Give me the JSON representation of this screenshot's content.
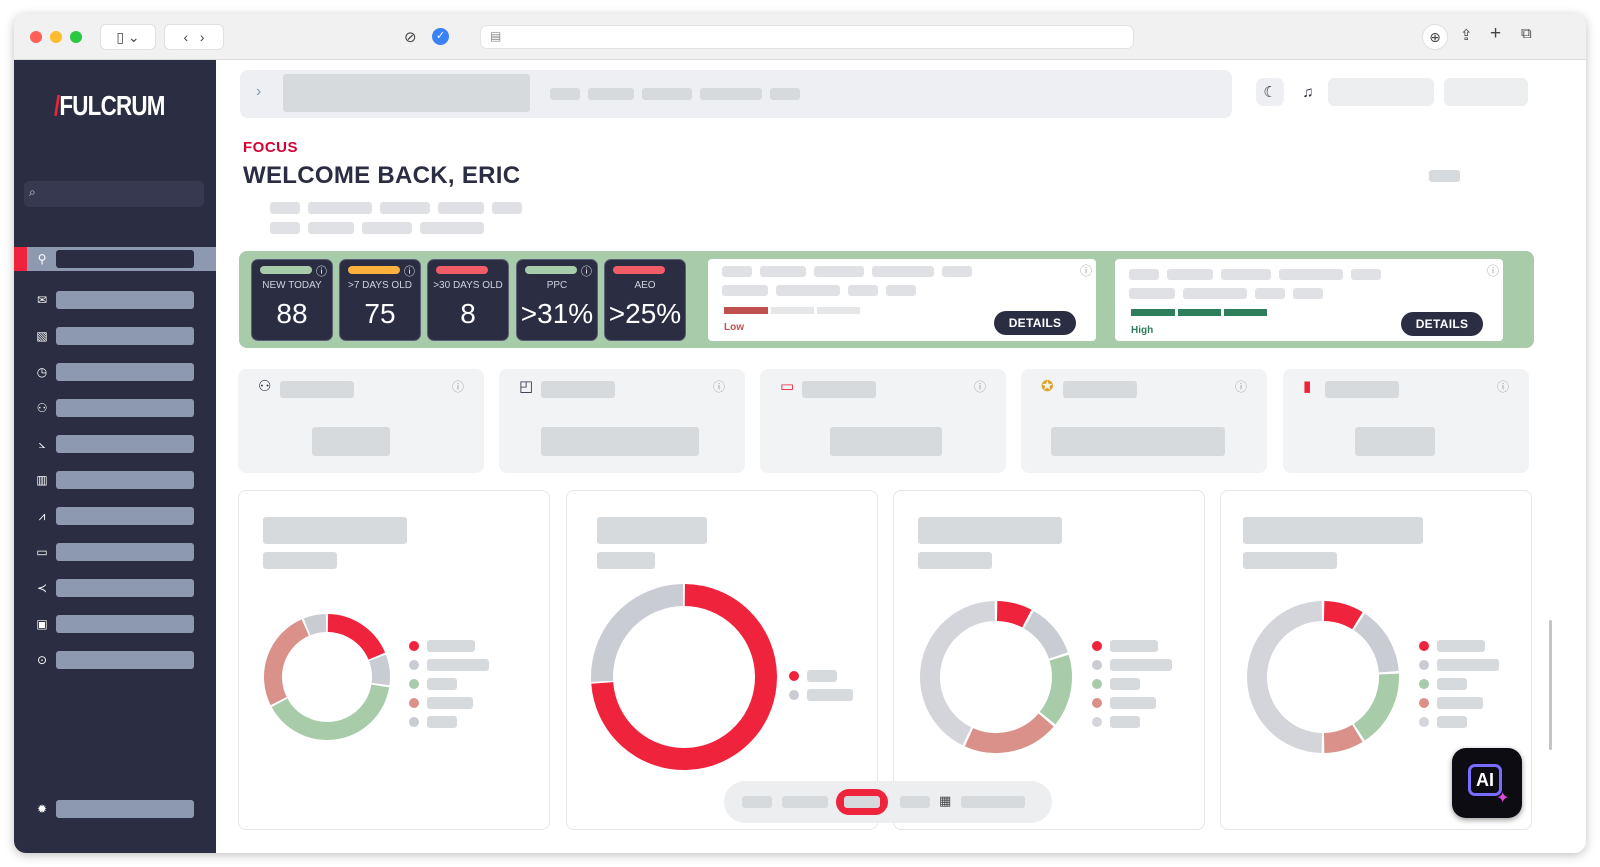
{
  "brand": {
    "logo_text": "FULCRUM",
    "logo_mark": "/",
    "color": "#ef233c"
  },
  "page": {
    "section_label": "FOCUS",
    "welcome": "WELCOME BACK, ERIC"
  },
  "kpis": [
    {
      "label": "NEW TODAY",
      "value": "88",
      "pill_color": "#a8ccaa"
    },
    {
      "label": ">7 DAYS OLD",
      "value": "75",
      "pill_color": "#fbb13c"
    },
    {
      "label": ">30 DAYS OLD",
      "value": "8",
      "pill_color": "#f25c66"
    },
    {
      "label": "PPC",
      "value": ">31%",
      "pill_color": "#a8ccaa"
    },
    {
      "label": "AEO",
      "value": ">25%",
      "pill_color": "#f25c66"
    }
  ],
  "detail_cards": [
    {
      "level": "Low",
      "level_color": "#c0504d",
      "button": "DETAILS"
    },
    {
      "level": "High",
      "level_color": "#2e7d5b",
      "button": "DETAILS"
    }
  ],
  "stat_cards": [
    {
      "icon": "person-icon",
      "glyph": "⚇"
    },
    {
      "icon": "briefcase-icon",
      "glyph": "◰"
    },
    {
      "icon": "wallet-icon",
      "glyph": "▭"
    },
    {
      "icon": "award-icon",
      "glyph": "✪"
    },
    {
      "icon": "bar-chart-icon",
      "glyph": "▮"
    }
  ],
  "nav_icons": [
    "pin-icon",
    "mail-icon",
    "chart-icon",
    "clock-icon",
    "user-icon",
    "trend-icon",
    "bars-icon",
    "line-chart-icon",
    "chat-icon",
    "share-icon",
    "image-icon",
    "play-icon"
  ],
  "chart_data": [
    {
      "type": "pie",
      "slices": [
        {
          "value": 18,
          "color": "#ef233c"
        },
        {
          "value": 8,
          "color": "#c9ccd3"
        },
        {
          "value": 38,
          "color": "#a8ccaa"
        },
        {
          "value": 25,
          "color": "#d9918a"
        },
        {
          "value": 6,
          "color": "#c9ccd3"
        }
      ]
    },
    {
      "type": "pie",
      "slices": [
        {
          "value": 74,
          "color": "#ef233c"
        },
        {
          "value": 26,
          "color": "#c9ccd3"
        }
      ]
    },
    {
      "type": "pie",
      "slices": [
        {
          "value": 8,
          "color": "#ef233c"
        },
        {
          "value": 12,
          "color": "#c9ccd3"
        },
        {
          "value": 16,
          "color": "#a8ccaa"
        },
        {
          "value": 21,
          "color": "#d9918a"
        },
        {
          "value": 43,
          "color": "#d3d5db"
        }
      ]
    },
    {
      "type": "pie",
      "slices": [
        {
          "value": 9,
          "color": "#ef233c"
        },
        {
          "value": 15,
          "color": "#c9ccd3"
        },
        {
          "value": 17,
          "color": "#a8ccaa"
        },
        {
          "value": 9,
          "color": "#d9918a"
        },
        {
          "value": 50,
          "color": "#d3d5db"
        }
      ]
    }
  ]
}
